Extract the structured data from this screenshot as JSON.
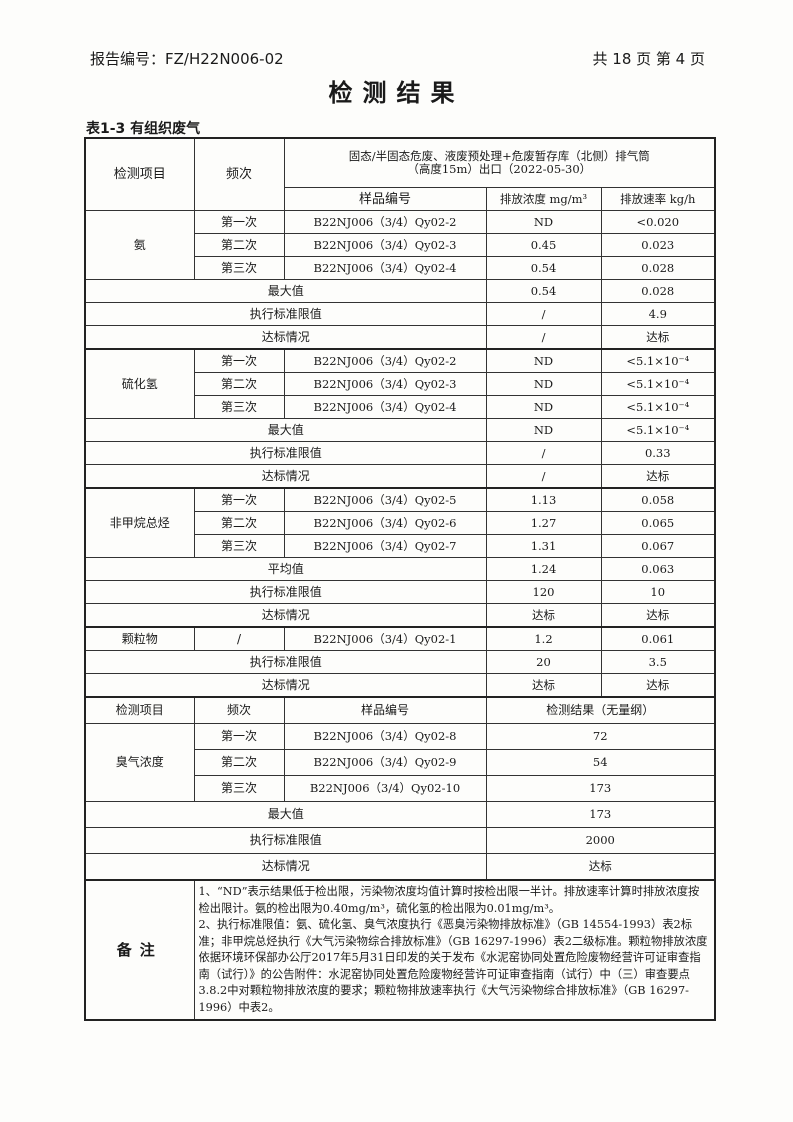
{
  "header": {
    "report_no": "报告编号：FZ/H22N006-02",
    "pages": "共 18 页   第 4 页"
  },
  "title": "检测结果",
  "caption": "表1-3 有组织废气",
  "table": {
    "col_item": "检测项目",
    "col_freq": "频次",
    "source": "固态/半固态危废、液废预处理+危废暂存库（北侧）排气筒",
    "source2": "（高度15m）出口（2022-05-30）",
    "col_sample": "样品编号",
    "col_conc": "排放浓度 mg/m³",
    "col_rate": "排放速率 kg/h",
    "groups": [
      {
        "item": "氨",
        "rows": [
          {
            "freq": "第一次",
            "sample": "B22NJ006（3/4）Qy02-2",
            "conc": "ND",
            "rate": "<0.020"
          },
          {
            "freq": "第二次",
            "sample": "B22NJ006（3/4）Qy02-3",
            "conc": "0.45",
            "rate": "0.023"
          },
          {
            "freq": "第三次",
            "sample": "B22NJ006（3/4）Qy02-4",
            "conc": "0.54",
            "rate": "0.028"
          }
        ],
        "summary": [
          {
            "label": "最大值",
            "conc": "0.54",
            "rate": "0.028"
          },
          {
            "label": "执行标准限值",
            "conc": "/",
            "rate": "4.9"
          },
          {
            "label": "达标情况",
            "conc": "/",
            "rate": "达标"
          }
        ]
      },
      {
        "item": "硫化氢",
        "rows": [
          {
            "freq": "第一次",
            "sample": "B22NJ006（3/4）Qy02-2",
            "conc": "ND",
            "rate": "<5.1×10⁻⁴"
          },
          {
            "freq": "第二次",
            "sample": "B22NJ006（3/4）Qy02-3",
            "conc": "ND",
            "rate": "<5.1×10⁻⁴"
          },
          {
            "freq": "第三次",
            "sample": "B22NJ006（3/4）Qy02-4",
            "conc": "ND",
            "rate": "<5.1×10⁻⁴"
          }
        ],
        "summary": [
          {
            "label": "最大值",
            "conc": "ND",
            "rate": "<5.1×10⁻⁴"
          },
          {
            "label": "执行标准限值",
            "conc": "/",
            "rate": "0.33"
          },
          {
            "label": "达标情况",
            "conc": "/",
            "rate": "达标"
          }
        ]
      },
      {
        "item": "非甲烷总烃",
        "rows": [
          {
            "freq": "第一次",
            "sample": "B22NJ006（3/4）Qy02-5",
            "conc": "1.13",
            "rate": "0.058"
          },
          {
            "freq": "第二次",
            "sample": "B22NJ006（3/4）Qy02-6",
            "conc": "1.27",
            "rate": "0.065"
          },
          {
            "freq": "第三次",
            "sample": "B22NJ006（3/4）Qy02-7",
            "conc": "1.31",
            "rate": "0.067"
          }
        ],
        "summary": [
          {
            "label": "平均值",
            "conc": "1.24",
            "rate": "0.063"
          },
          {
            "label": "执行标准限值",
            "conc": "120",
            "rate": "10"
          },
          {
            "label": "达标情况",
            "conc": "达标",
            "rate": "达标"
          }
        ]
      },
      {
        "item": "颗粒物",
        "rows": [
          {
            "freq": "/",
            "sample": "B22NJ006（3/4）Qy02-1",
            "conc": "1.2",
            "rate": "0.061"
          }
        ],
        "summary": [
          {
            "label": "执行标准限值",
            "conc": "20",
            "rate": "3.5"
          },
          {
            "label": "达标情况",
            "conc": "达标",
            "rate": "达标"
          }
        ]
      }
    ]
  },
  "odor": {
    "col_item": "检测项目",
    "col_freq": "频次",
    "col_sample": "样品编号",
    "col_result": "检测结果（无量纲）",
    "item": "臭气浓度",
    "rows": [
      {
        "freq": "第一次",
        "sample": "B22NJ006（3/4）Qy02-8",
        "result": "72"
      },
      {
        "freq": "第二次",
        "sample": "B22NJ006（3/4）Qy02-9",
        "result": "54"
      },
      {
        "freq": "第三次",
        "sample": "B22NJ006（3/4）Qy02-10",
        "result": "173"
      }
    ],
    "summary": [
      {
        "label": "最大值",
        "result": "173"
      },
      {
        "label": "执行标准限值",
        "result": "2000"
      },
      {
        "label": "达标情况",
        "result": "达标"
      }
    ]
  },
  "notes": {
    "label": "备注",
    "text1": "1、“ND”表示结果低于检出限，污染物浓度均值计算时按检出限一半计。排放速率计算时排放浓度按检出限计。氨的检出限为0.40mg/m³，硫化氢的检出限为0.01mg/m³。",
    "text2": "2、执行标准限值：氨、硫化氢、臭气浓度执行《恶臭污染物排放标准》（GB 14554-1993）表2标准；非甲烷总烃执行《大气污染物综合排放标准》（GB 16297-1996）表2二级标准。颗粒物排放浓度依据环境环保部办公厅2017年5月31日印发的关于发布《水泥窑协同处置危险废物经营许可证审查指南（试行）》的公告附件：水泥窑协同处置危险废物经营许可证审查指南（试行）中（三）审查要点3.8.2中对颗粒物排放浓度的要求；颗粒物排放速率执行《大气污染物综合排放标准》（GB 16297-1996）中表2。"
  }
}
